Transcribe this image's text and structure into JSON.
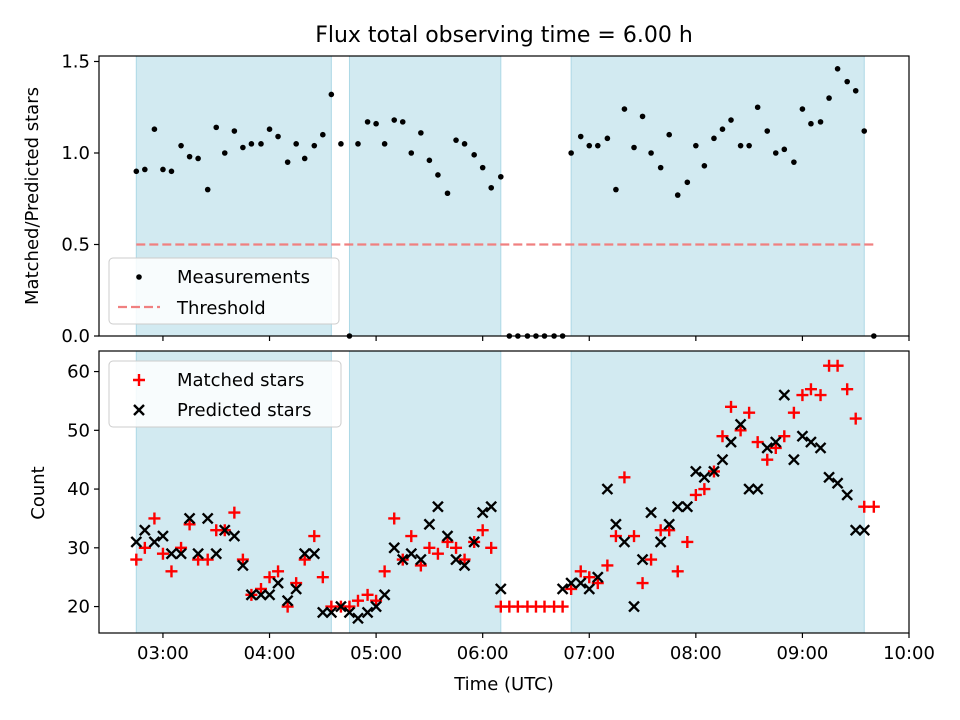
{
  "figure_title": "Flux total observing time = 6.00 h",
  "colors": {
    "shade": "#add8e6",
    "measurement": "#000000",
    "threshold": "#f08080",
    "matched": "#ff0000",
    "predicted": "#000000"
  },
  "chart_data": [
    {
      "type": "scatter",
      "title": "Flux total observing time = 6.00 h",
      "xlabel": "",
      "ylabel": "Matched/Predicted stars",
      "xlim": [
        2.4,
        10.0
      ],
      "ylim": [
        0.0,
        1.53
      ],
      "yticks": [
        0.0,
        0.5,
        1.0,
        1.5
      ],
      "ytick_labels": [
        "0.0",
        "0.5",
        "1.0",
        "1.5"
      ],
      "shaded_intervals_hours": [
        [
          2.75,
          4.58
        ],
        [
          4.75,
          6.17
        ],
        [
          6.83,
          9.58
        ]
      ],
      "threshold": {
        "value": 0.5,
        "x_range": [
          2.75,
          9.67
        ]
      },
      "legend": {
        "location": "lower-left",
        "entries": [
          "Measurements",
          "Threshold"
        ]
      },
      "series": [
        {
          "name": "Measurements",
          "marker": "dot",
          "x": [
            2.75,
            2.83,
            2.92,
            3.0,
            3.08,
            3.17,
            3.25,
            3.33,
            3.42,
            3.5,
            3.58,
            3.67,
            3.75,
            3.83,
            3.92,
            4.0,
            4.08,
            4.17,
            4.25,
            4.33,
            4.42,
            4.5,
            4.58,
            4.67,
            4.75,
            4.83,
            4.92,
            5.0,
            5.08,
            5.17,
            5.25,
            5.33,
            5.42,
            5.5,
            5.58,
            5.67,
            5.75,
            5.83,
            5.92,
            6.0,
            6.08,
            6.17,
            6.25,
            6.33,
            6.42,
            6.5,
            6.58,
            6.67,
            6.75,
            6.83,
            6.92,
            7.0,
            7.08,
            7.17,
            7.25,
            7.33,
            7.42,
            7.5,
            7.58,
            7.67,
            7.75,
            7.83,
            7.92,
            8.0,
            8.08,
            8.17,
            8.25,
            8.33,
            8.42,
            8.5,
            8.58,
            8.67,
            8.75,
            8.83,
            8.92,
            9.0,
            9.08,
            9.17,
            9.25,
            9.33,
            9.42,
            9.5,
            9.58,
            9.67
          ],
          "y": [
            0.9,
            0.91,
            1.13,
            0.91,
            0.9,
            1.04,
            0.98,
            0.97,
            0.8,
            1.14,
            1.0,
            1.12,
            1.03,
            1.05,
            1.05,
            1.13,
            1.09,
            0.95,
            1.05,
            0.97,
            1.04,
            1.1,
            1.32,
            1.05,
            0.0,
            1.05,
            1.17,
            1.16,
            1.05,
            1.18,
            1.17,
            1.0,
            1.11,
            0.96,
            0.88,
            0.78,
            1.07,
            1.05,
            0.99,
            0.92,
            0.81,
            0.87,
            0.0,
            0.0,
            0.0,
            0.0,
            0.0,
            0.0,
            0.0,
            1.0,
            1.09,
            1.04,
            1.04,
            1.08,
            0.8,
            1.24,
            1.03,
            1.2,
            1.0,
            0.92,
            1.1,
            0.77,
            0.84,
            1.04,
            0.93,
            1.08,
            1.13,
            1.18,
            1.04,
            1.04,
            1.25,
            1.12,
            1.0,
            1.02,
            0.95,
            1.24,
            1.16,
            1.17,
            1.3,
            1.46,
            1.39,
            1.34,
            1.12,
            0.0
          ]
        }
      ]
    },
    {
      "type": "scatter",
      "title": "",
      "xlabel": "Time (UTC)",
      "ylabel": "Count",
      "xlim": [
        2.4,
        10.0
      ],
      "ylim": [
        15.5,
        63.5
      ],
      "xticks": [
        3,
        4,
        5,
        6,
        7,
        8,
        9,
        10
      ],
      "xtick_labels": [
        "03:00",
        "04:00",
        "05:00",
        "06:00",
        "07:00",
        "08:00",
        "09:00",
        "10:00"
      ],
      "yticks": [
        20,
        30,
        40,
        50,
        60
      ],
      "ytick_labels": [
        "20",
        "30",
        "40",
        "50",
        "60"
      ],
      "shaded_intervals_hours": [
        [
          2.75,
          4.58
        ],
        [
          4.75,
          6.17
        ],
        [
          6.83,
          9.58
        ]
      ],
      "legend": {
        "location": "upper-left",
        "entries": [
          "Matched stars",
          "Predicted stars"
        ]
      },
      "series": [
        {
          "name": "Matched stars",
          "marker": "plus",
          "x": [
            2.75,
            2.83,
            2.92,
            3.0,
            3.08,
            3.17,
            3.25,
            3.33,
            3.42,
            3.5,
            3.58,
            3.67,
            3.75,
            3.83,
            3.92,
            4.0,
            4.08,
            4.17,
            4.25,
            4.33,
            4.42,
            4.5,
            4.58,
            4.67,
            4.75,
            4.83,
            4.92,
            5.0,
            5.08,
            5.17,
            5.25,
            5.33,
            5.42,
            5.5,
            5.58,
            5.67,
            5.75,
            5.83,
            5.92,
            6.0,
            6.08,
            6.17,
            6.25,
            6.33,
            6.42,
            6.5,
            6.58,
            6.67,
            6.75,
            6.83,
            6.92,
            7.0,
            7.08,
            7.17,
            7.25,
            7.33,
            7.42,
            7.5,
            7.58,
            7.67,
            7.75,
            7.83,
            7.92,
            8.0,
            8.08,
            8.17,
            8.25,
            8.33,
            8.42,
            8.5,
            8.58,
            8.67,
            8.75,
            8.83,
            8.92,
            9.0,
            9.08,
            9.17,
            9.25,
            9.33,
            9.42,
            9.5,
            9.58,
            9.67
          ],
          "y": [
            28,
            30,
            35,
            29,
            26,
            30,
            34,
            28,
            28,
            33,
            33,
            36,
            28,
            22,
            23,
            25,
            26,
            20,
            24,
            28,
            32,
            25,
            20,
            20,
            20,
            21,
            22,
            21,
            26,
            35,
            28,
            32,
            27,
            30,
            29,
            31,
            30,
            28,
            31,
            33,
            30,
            20,
            20,
            20,
            20,
            20,
            20,
            20,
            20,
            23,
            26,
            25,
            24,
            27,
            32,
            42,
            32,
            24,
            28,
            33,
            33,
            26,
            31,
            39,
            40,
            43,
            49,
            54,
            50,
            53,
            48,
            45,
            47,
            49,
            53,
            56,
            57,
            56,
            61,
            61,
            57,
            52,
            37,
            37
          ]
        },
        {
          "name": "Predicted stars",
          "marker": "x",
          "x": [
            2.75,
            2.83,
            2.92,
            3.0,
            3.08,
            3.17,
            3.25,
            3.33,
            3.42,
            3.5,
            3.58,
            3.67,
            3.75,
            3.83,
            3.92,
            4.0,
            4.08,
            4.17,
            4.25,
            4.33,
            4.42,
            4.5,
            4.58,
            4.67,
            4.75,
            4.83,
            4.92,
            5.0,
            5.08,
            5.17,
            5.25,
            5.33,
            5.42,
            5.5,
            5.58,
            5.67,
            5.75,
            5.83,
            5.92,
            6.0,
            6.08,
            6.17,
            6.75,
            6.83,
            6.92,
            7.0,
            7.08,
            7.17,
            7.25,
            7.33,
            7.42,
            7.5,
            7.58,
            7.67,
            7.75,
            7.83,
            7.92,
            8.0,
            8.08,
            8.17,
            8.25,
            8.33,
            8.42,
            8.5,
            8.58,
            8.67,
            8.75,
            8.83,
            8.92,
            9.0,
            9.08,
            9.17,
            9.25,
            9.33,
            9.42,
            9.5,
            9.58
          ],
          "y": [
            31,
            33,
            31,
            32,
            29,
            29,
            35,
            29,
            35,
            29,
            33,
            32,
            27,
            22,
            22,
            22,
            24,
            21,
            23,
            29,
            29,
            19,
            19,
            20,
            19,
            18,
            19,
            20,
            22,
            30,
            28,
            29,
            28,
            34,
            37,
            32,
            28,
            27,
            31,
            36,
            37,
            23,
            23,
            24,
            24,
            23,
            25,
            40,
            34,
            31,
            20,
            28,
            36,
            31,
            34,
            37,
            37,
            43,
            42,
            43,
            45,
            48,
            51,
            40,
            40,
            47,
            48,
            56,
            45,
            49,
            48,
            47,
            42,
            41,
            39,
            33,
            33
          ]
        }
      ]
    }
  ]
}
